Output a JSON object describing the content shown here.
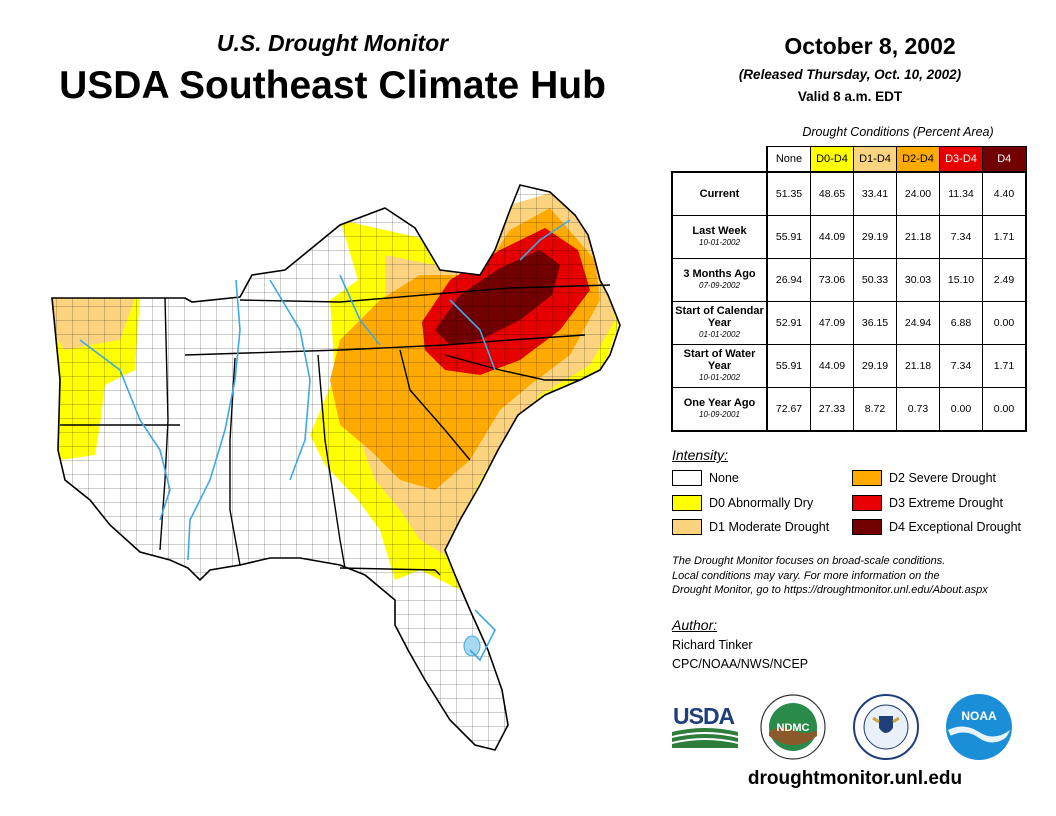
{
  "header": {
    "subtitle": "U.S. Drought Monitor",
    "title": "USDA Southeast Climate Hub",
    "date": "October 8, 2002",
    "released": "(Released Thursday, Oct. 10, 2002)",
    "valid": "Valid 8 a.m. EDT"
  },
  "stats_table": {
    "caption": "Drought Conditions (Percent Area)",
    "columns": [
      "None",
      "D0-D4",
      "D1-D4",
      "D2-D4",
      "D3-D4",
      "D4"
    ],
    "column_colors": [
      "#ffffff",
      "#ffff00",
      "#fcd37f",
      "#ffaa00",
      "#e60000",
      "#730000"
    ],
    "column_text_colors": [
      "#000000",
      "#000000",
      "#000000",
      "#000000",
      "#ffffff",
      "#ffffff"
    ],
    "rows": [
      {
        "label": "Current",
        "date": "",
        "values": [
          "51.35",
          "48.65",
          "33.41",
          "24.00",
          "11.34",
          "4.40"
        ]
      },
      {
        "label": "Last Week",
        "date": "10-01-2002",
        "values": [
          "55.91",
          "44.09",
          "29.19",
          "21.18",
          "7.34",
          "1.71"
        ]
      },
      {
        "label": "3 Months Ago",
        "date": "07-09-2002",
        "values": [
          "26.94",
          "73.06",
          "50.33",
          "30.03",
          "15.10",
          "2.49"
        ]
      },
      {
        "label": "Start of Calendar Year",
        "date": "01-01-2002",
        "values": [
          "52.91",
          "47.09",
          "36.15",
          "24.94",
          "6.88",
          "0.00"
        ]
      },
      {
        "label": "Start of Water Year",
        "date": "10-01-2002",
        "values": [
          "55.91",
          "44.09",
          "29.19",
          "21.18",
          "7.34",
          "1.71"
        ]
      },
      {
        "label": "One Year Ago",
        "date": "10-09-2001",
        "values": [
          "72.67",
          "27.33",
          "8.72",
          "0.73",
          "0.00",
          "0.00"
        ]
      }
    ]
  },
  "legend": {
    "heading": "Intensity:",
    "items": [
      {
        "label": "None",
        "color": "#ffffff"
      },
      {
        "label": "D0 Abnormally Dry",
        "color": "#ffff00"
      },
      {
        "label": "D1 Moderate Drought",
        "color": "#fcd37f"
      },
      {
        "label": "D2 Severe Drought",
        "color": "#ffaa00"
      },
      {
        "label": "D3 Extreme Drought",
        "color": "#e60000"
      },
      {
        "label": "D4 Exceptional Drought",
        "color": "#730000"
      }
    ]
  },
  "note": {
    "line1": "The Drought Monitor focuses on broad-scale conditions.",
    "line2": "Local conditions may vary. For more information on the",
    "line3": "Drought Monitor, go to https://droughtmonitor.unl.edu/About.aspx"
  },
  "author": {
    "heading": "Author:",
    "name": "Richard Tinker",
    "org": "CPC/NOAA/NWS/NCEP"
  },
  "logos": {
    "usda": "USDA",
    "ndmc": "NDMC",
    "noaa": "NOAA"
  },
  "footer": {
    "url": "droughtmonitor.unl.edu"
  },
  "colors": {
    "river": "#3ea8e6",
    "lake": "#a8d8f0",
    "border": "#000000"
  }
}
